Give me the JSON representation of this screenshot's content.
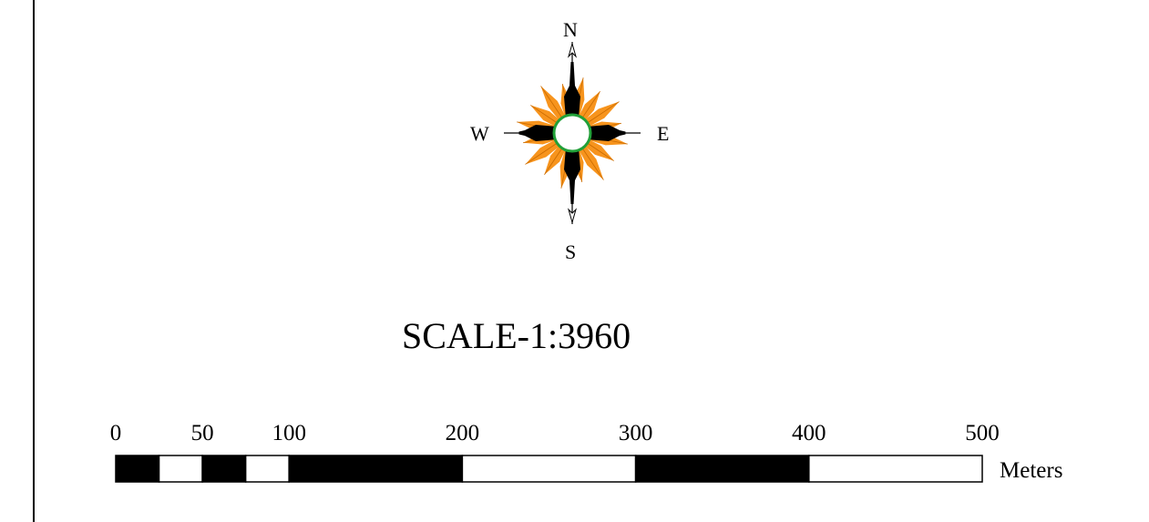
{
  "north_arrow": {
    "labels": {
      "n": "N",
      "e": "E",
      "s": "S",
      "w": "W"
    },
    "colors": {
      "spikes": "#f7941d",
      "arms": "#000000",
      "ring": "#21a038",
      "center": "#ffffff"
    }
  },
  "scale": {
    "text": "SCALE-1:3960",
    "units": "Meters",
    "ticks": [
      {
        "label": "0",
        "value": 0
      },
      {
        "label": "50",
        "value": 50
      },
      {
        "label": "100",
        "value": 100
      },
      {
        "label": "200",
        "value": 200
      },
      {
        "label": "300",
        "value": 300
      },
      {
        "label": "400",
        "value": 400
      },
      {
        "label": "500",
        "value": 500
      }
    ],
    "segments": [
      {
        "from": 0,
        "to": 25,
        "fill": "black"
      },
      {
        "from": 25,
        "to": 50,
        "fill": "white"
      },
      {
        "from": 50,
        "to": 75,
        "fill": "black"
      },
      {
        "from": 75,
        "to": 100,
        "fill": "white"
      },
      {
        "from": 100,
        "to": 200,
        "fill": "black"
      },
      {
        "from": 200,
        "to": 300,
        "fill": "white"
      },
      {
        "from": 300,
        "to": 400,
        "fill": "black"
      },
      {
        "from": 400,
        "to": 500,
        "fill": "white"
      }
    ]
  }
}
